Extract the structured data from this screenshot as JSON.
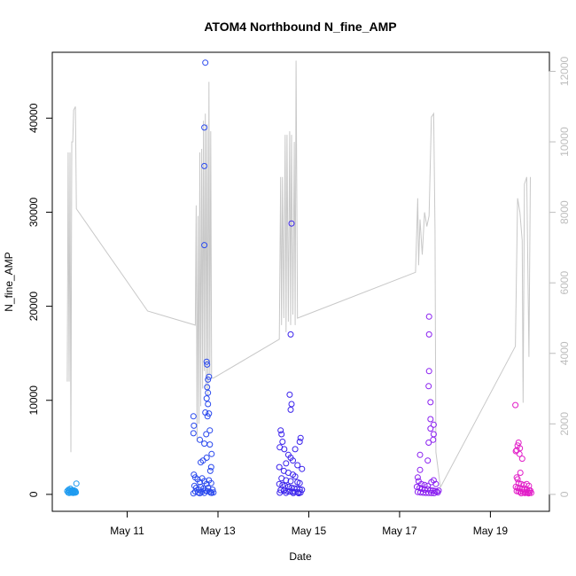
{
  "chart_data": {
    "type": "scatter",
    "title": "ATOM4 Northbound N_fine_AMP",
    "xlabel": "Date",
    "ylabel": "N_fine_AMP",
    "x_ticks": [
      {
        "day": 11,
        "label": "May 11"
      },
      {
        "day": 13,
        "label": "May 13"
      },
      {
        "day": 15,
        "label": "May 15"
      },
      {
        "day": 17,
        "label": "May 17"
      },
      {
        "day": 19,
        "label": "May 19"
      }
    ],
    "xlim": [
      9.35,
      20.3
    ],
    "ylim": [
      -1800,
      47000
    ],
    "y_ticks": [
      0,
      10000,
      20000,
      30000,
      40000
    ],
    "y2lim": [
      -480,
      12540
    ],
    "y2_ticks": [
      0,
      2000,
      4000,
      6000,
      8000,
      10000,
      12000
    ],
    "colors": {
      "trace": "#c8c8c8",
      "series": [
        "#1e9bf0",
        "#2a49ee",
        "#3a22ec",
        "#8a1ff0",
        "#e21ec8"
      ]
    },
    "secondary_trace": [
      [
        9.68,
        3200
      ],
      [
        9.7,
        9700
      ],
      [
        9.72,
        3200
      ],
      [
        9.74,
        9700
      ],
      [
        9.76,
        1200
      ],
      [
        9.78,
        10000
      ],
      [
        9.8,
        10000
      ],
      [
        9.82,
        10900
      ],
      [
        9.86,
        11000
      ],
      [
        9.88,
        8100
      ],
      [
        11.45,
        5200
      ],
      [
        12.5,
        4800
      ],
      [
        12.52,
        8200
      ],
      [
        12.54,
        1500
      ],
      [
        12.56,
        7900
      ],
      [
        12.58,
        2000
      ],
      [
        12.6,
        9700
      ],
      [
        12.62,
        2500
      ],
      [
        12.64,
        9800
      ],
      [
        12.66,
        3000
      ],
      [
        12.68,
        10600
      ],
      [
        12.7,
        3500
      ],
      [
        12.72,
        10800
      ],
      [
        12.74,
        3000
      ],
      [
        12.76,
        10500
      ],
      [
        12.78,
        2800
      ],
      [
        12.8,
        11700
      ],
      [
        12.82,
        3400
      ],
      [
        12.84,
        10300
      ],
      [
        12.86,
        3300
      ],
      [
        12.9,
        3300
      ],
      [
        14.35,
        4400
      ],
      [
        14.38,
        9000
      ],
      [
        14.4,
        4800
      ],
      [
        14.42,
        9000
      ],
      [
        14.45,
        5000
      ],
      [
        14.48,
        10200
      ],
      [
        14.5,
        4600
      ],
      [
        14.52,
        10200
      ],
      [
        14.55,
        4900
      ],
      [
        14.58,
        10300
      ],
      [
        14.6,
        4800
      ],
      [
        14.62,
        10200
      ],
      [
        14.65,
        5100
      ],
      [
        14.68,
        10000
      ],
      [
        14.7,
        4800
      ],
      [
        14.72,
        12300
      ],
      [
        14.75,
        5000
      ],
      [
        17.35,
        6300
      ],
      [
        17.4,
        8400
      ],
      [
        17.42,
        6500
      ],
      [
        17.45,
        7800
      ],
      [
        17.5,
        6800
      ],
      [
        17.55,
        8000
      ],
      [
        17.6,
        7600
      ],
      [
        17.65,
        7900
      ],
      [
        17.7,
        10700
      ],
      [
        17.75,
        10800
      ],
      [
        17.78,
        7500
      ],
      [
        17.8,
        1200
      ],
      [
        17.9,
        200
      ],
      [
        19.55,
        4200
      ],
      [
        19.6,
        8400
      ],
      [
        19.65,
        8000
      ],
      [
        19.7,
        7200
      ],
      [
        19.72,
        2600
      ],
      [
        19.75,
        8800
      ],
      [
        19.8,
        9000
      ],
      [
        19.85,
        3900
      ],
      [
        19.88,
        9000
      ]
    ],
    "series": [
      {
        "values": [
          [
            9.68,
            350
          ],
          [
            9.7,
            200
          ],
          [
            9.71,
            500
          ],
          [
            9.72,
            150
          ],
          [
            9.73,
            400
          ],
          [
            9.74,
            250
          ],
          [
            9.75,
            600
          ],
          [
            9.76,
            180
          ],
          [
            9.77,
            320
          ],
          [
            9.78,
            450
          ],
          [
            9.79,
            220
          ],
          [
            9.8,
            380
          ],
          [
            9.81,
            150
          ],
          [
            9.82,
            290
          ],
          [
            9.83,
            420
          ],
          [
            9.84,
            260
          ],
          [
            9.85,
            190
          ],
          [
            9.86,
            340
          ],
          [
            9.87,
            210
          ],
          [
            9.88,
            1150
          ]
        ]
      },
      {
        "values": [
          [
            12.72,
            45900
          ],
          [
            12.7,
            39000
          ],
          [
            12.7,
            34900
          ],
          [
            12.7,
            26500
          ],
          [
            12.75,
            14100
          ],
          [
            12.76,
            13800
          ],
          [
            12.8,
            12500
          ],
          [
            12.78,
            12200
          ],
          [
            12.76,
            11400
          ],
          [
            12.78,
            10800
          ],
          [
            12.75,
            10200
          ],
          [
            12.78,
            9600
          ],
          [
            12.72,
            8700
          ],
          [
            12.46,
            8300
          ],
          [
            12.8,
            8600
          ],
          [
            12.77,
            8300
          ],
          [
            12.47,
            7300
          ],
          [
            12.46,
            6500
          ],
          [
            12.82,
            6800
          ],
          [
            12.74,
            6400
          ],
          [
            12.6,
            5800
          ],
          [
            12.7,
            5400
          ],
          [
            12.82,
            5300
          ],
          [
            12.86,
            4300
          ],
          [
            12.75,
            3900
          ],
          [
            12.67,
            3600
          ],
          [
            12.62,
            3400
          ],
          [
            12.85,
            2900
          ],
          [
            12.83,
            2500
          ],
          [
            12.47,
            2100
          ],
          [
            12.5,
            1800
          ],
          [
            12.55,
            1600
          ],
          [
            12.6,
            1300
          ],
          [
            12.65,
            1700
          ],
          [
            12.7,
            1400
          ],
          [
            12.75,
            1100
          ],
          [
            12.8,
            1500
          ],
          [
            12.85,
            1200
          ],
          [
            12.48,
            900
          ],
          [
            12.52,
            700
          ],
          [
            12.58,
            500
          ],
          [
            12.62,
            800
          ],
          [
            12.68,
            600
          ],
          [
            12.72,
            400
          ],
          [
            12.78,
            700
          ],
          [
            12.82,
            300
          ],
          [
            12.88,
            500
          ],
          [
            12.9,
            200
          ],
          [
            12.5,
            300
          ],
          [
            12.56,
            200
          ],
          [
            12.64,
            250
          ],
          [
            12.7,
            150
          ],
          [
            12.76,
            350
          ],
          [
            12.84,
            180
          ],
          [
            12.46,
            100
          ],
          [
            12.86,
            150
          ],
          [
            12.6,
            120
          ]
        ]
      },
      {
        "values": [
          [
            14.62,
            28800
          ],
          [
            14.6,
            17000
          ],
          [
            14.58,
            10600
          ],
          [
            14.62,
            9600
          ],
          [
            14.6,
            9000
          ],
          [
            14.38,
            6800
          ],
          [
            14.4,
            6400
          ],
          [
            14.42,
            5600
          ],
          [
            14.82,
            6000
          ],
          [
            14.8,
            5600
          ],
          [
            14.36,
            5000
          ],
          [
            14.46,
            4800
          ],
          [
            14.7,
            4800
          ],
          [
            14.55,
            4200
          ],
          [
            14.6,
            3900
          ],
          [
            14.65,
            3600
          ],
          [
            14.5,
            3300
          ],
          [
            14.75,
            3100
          ],
          [
            14.35,
            2900
          ],
          [
            14.85,
            2700
          ],
          [
            14.45,
            2500
          ],
          [
            14.55,
            2300
          ],
          [
            14.65,
            2100
          ],
          [
            14.7,
            1900
          ],
          [
            14.4,
            1700
          ],
          [
            14.5,
            1500
          ],
          [
            14.6,
            1400
          ],
          [
            14.75,
            1300
          ],
          [
            14.8,
            1200
          ],
          [
            14.35,
            1100
          ],
          [
            14.42,
            1000
          ],
          [
            14.48,
            900
          ],
          [
            14.55,
            800
          ],
          [
            14.62,
            700
          ],
          [
            14.68,
            650
          ],
          [
            14.74,
            600
          ],
          [
            14.8,
            550
          ],
          [
            14.85,
            500
          ],
          [
            14.38,
            450
          ],
          [
            14.45,
            400
          ],
          [
            14.52,
            350
          ],
          [
            14.58,
            300
          ],
          [
            14.64,
            280
          ],
          [
            14.7,
            250
          ],
          [
            14.76,
            220
          ],
          [
            14.82,
            200
          ],
          [
            14.36,
            180
          ],
          [
            14.5,
            160
          ],
          [
            14.66,
            140
          ],
          [
            14.78,
            120
          ]
        ]
      },
      {
        "values": [
          [
            17.65,
            18900
          ],
          [
            17.65,
            17000
          ],
          [
            17.65,
            13100
          ],
          [
            17.64,
            11500
          ],
          [
            17.68,
            9800
          ],
          [
            17.68,
            8000
          ],
          [
            17.75,
            7400
          ],
          [
            17.68,
            7000
          ],
          [
            17.75,
            6400
          ],
          [
            17.64,
            5500
          ],
          [
            17.74,
            5800
          ],
          [
            17.45,
            4200
          ],
          [
            17.62,
            3600
          ],
          [
            17.45,
            2600
          ],
          [
            17.4,
            1800
          ],
          [
            17.42,
            1400
          ],
          [
            17.48,
            1100
          ],
          [
            17.55,
            1000
          ],
          [
            17.62,
            900
          ],
          [
            17.7,
            1300
          ],
          [
            17.75,
            1500
          ],
          [
            17.8,
            1100
          ],
          [
            17.38,
            800
          ],
          [
            17.44,
            700
          ],
          [
            17.5,
            600
          ],
          [
            17.56,
            500
          ],
          [
            17.62,
            550
          ],
          [
            17.68,
            450
          ],
          [
            17.74,
            400
          ],
          [
            17.78,
            350
          ],
          [
            17.82,
            300
          ],
          [
            17.4,
            250
          ],
          [
            17.46,
            200
          ],
          [
            17.52,
            180
          ],
          [
            17.58,
            160
          ],
          [
            17.64,
            150
          ],
          [
            17.7,
            140
          ],
          [
            17.76,
            130
          ],
          [
            17.84,
            200
          ],
          [
            17.86,
            400
          ]
        ]
      },
      {
        "values": [
          [
            19.55,
            9500
          ],
          [
            19.62,
            5500
          ],
          [
            19.6,
            5200
          ],
          [
            19.65,
            4900
          ],
          [
            19.58,
            4700
          ],
          [
            19.56,
            4600
          ],
          [
            19.64,
            4300
          ],
          [
            19.7,
            3800
          ],
          [
            19.66,
            2300
          ],
          [
            19.58,
            1800
          ],
          [
            19.6,
            1600
          ],
          [
            19.62,
            1200
          ],
          [
            19.68,
            1100
          ],
          [
            19.74,
            1000
          ],
          [
            19.8,
            1100
          ],
          [
            19.85,
            900
          ],
          [
            19.56,
            800
          ],
          [
            19.6,
            700
          ],
          [
            19.64,
            650
          ],
          [
            19.7,
            600
          ],
          [
            19.75,
            550
          ],
          [
            19.8,
            500
          ],
          [
            19.85,
            450
          ],
          [
            19.88,
            400
          ],
          [
            19.58,
            350
          ],
          [
            19.62,
            300
          ],
          [
            19.66,
            280
          ],
          [
            19.72,
            250
          ],
          [
            19.78,
            220
          ],
          [
            19.82,
            200
          ],
          [
            19.86,
            180
          ],
          [
            19.9,
            160
          ],
          [
            19.76,
            140
          ],
          [
            19.68,
            120
          ],
          [
            19.84,
            100
          ]
        ]
      }
    ]
  }
}
